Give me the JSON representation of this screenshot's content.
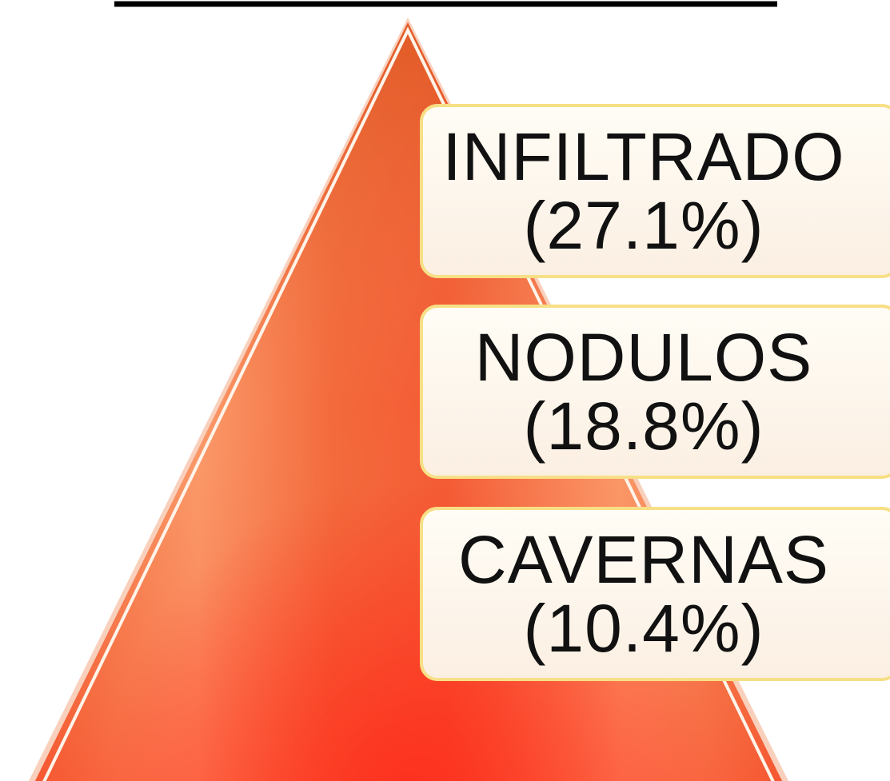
{
  "items": [
    {
      "label": "INFILTRADO",
      "percent": "(27.1%)"
    },
    {
      "label": "NODULOS",
      "percent": "(18.8%)"
    },
    {
      "label": "CAVERNAS",
      "percent": "(10.4%)"
    }
  ]
}
